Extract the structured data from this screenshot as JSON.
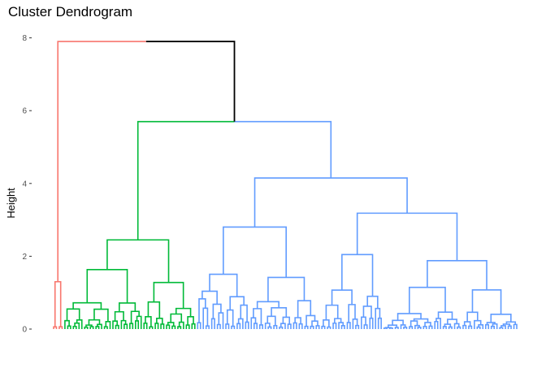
{
  "chart_data": {
    "type": "dendrogram",
    "title": "Cluster Dendrogram",
    "xlabel": "",
    "ylabel": "Height",
    "ylim": [
      0,
      8.1
    ],
    "y_ticks": [
      0,
      2,
      4,
      6,
      8
    ],
    "grid": false,
    "leaf_count": 165,
    "cut_clusters": 3,
    "root_height": 7.9,
    "clusters": [
      {
        "color": "#F8766D",
        "leaf_range": [
          0,
          3
        ],
        "merge_height": 1.3
      },
      {
        "color": "#00BA38",
        "leaf_range": [
          4,
          50
        ],
        "merge_height": 2.45
      },
      {
        "color": "#619CFF",
        "leaf_range": [
          51,
          164
        ],
        "merge_height": 4.15
      }
    ],
    "internal_merges": [
      {
        "clusters": [
          "green",
          "blue"
        ],
        "height": 5.7
      },
      {
        "clusters": [
          "red",
          "green+blue"
        ],
        "height": 7.9
      }
    ],
    "above_cut_color": "#000000"
  }
}
